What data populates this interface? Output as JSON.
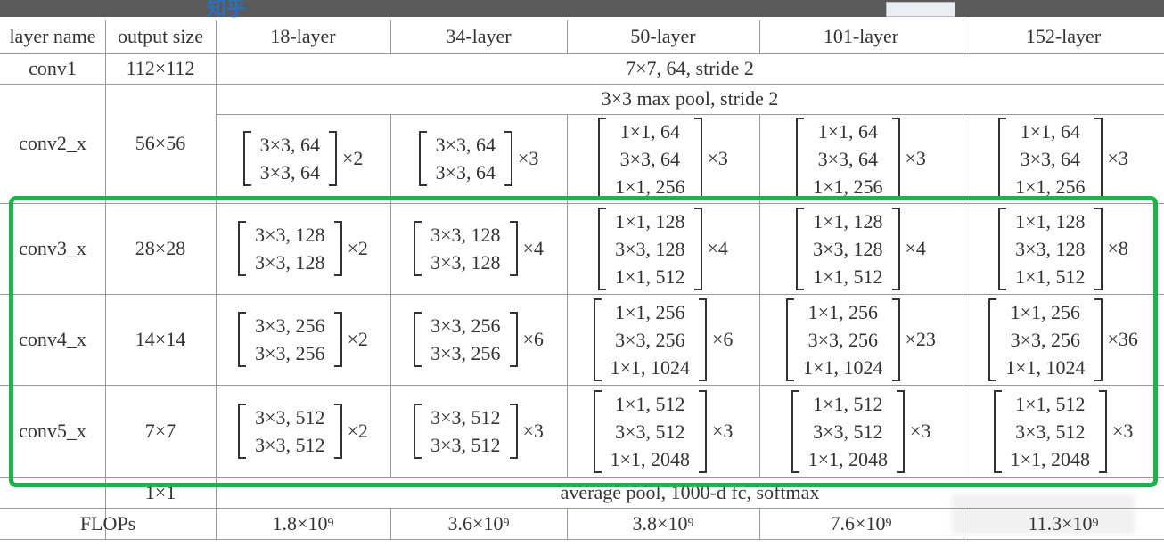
{
  "header": {
    "logo": "知乎"
  },
  "table": {
    "columns": [
      "layer name",
      "output size",
      "18-layer",
      "34-layer",
      "50-layer",
      "101-layer",
      "152-layer"
    ],
    "rows": [
      {
        "name": "conv1",
        "output": "112×112",
        "span": "7×7, 64, stride 2"
      },
      {
        "name": "conv2_x",
        "output": "56×56",
        "span": "3×3 max pool, stride 2",
        "blocks": [
          {
            "lines": [
              "3×3, 64",
              "3×3, 64"
            ],
            "times": "×2"
          },
          {
            "lines": [
              "3×3, 64",
              "3×3, 64"
            ],
            "times": "×3"
          },
          {
            "lines": [
              "1×1, 64",
              "3×3, 64",
              "1×1, 256"
            ],
            "times": "×3"
          },
          {
            "lines": [
              "1×1, 64",
              "3×3, 64",
              "1×1, 256"
            ],
            "times": "×3"
          },
          {
            "lines": [
              "1×1, 64",
              "3×3, 64",
              "1×1, 256"
            ],
            "times": "×3"
          }
        ]
      },
      {
        "name": "conv3_x",
        "output": "28×28",
        "blocks": [
          {
            "lines": [
              "3×3, 128",
              "3×3, 128"
            ],
            "times": "×2"
          },
          {
            "lines": [
              "3×3, 128",
              "3×3, 128"
            ],
            "times": "×4"
          },
          {
            "lines": [
              "1×1, 128",
              "3×3, 128",
              "1×1, 512"
            ],
            "times": "×4"
          },
          {
            "lines": [
              "1×1, 128",
              "3×3, 128",
              "1×1, 512"
            ],
            "times": "×4"
          },
          {
            "lines": [
              "1×1, 128",
              "3×3, 128",
              "1×1, 512"
            ],
            "times": "×8"
          }
        ]
      },
      {
        "name": "conv4_x",
        "output": "14×14",
        "blocks": [
          {
            "lines": [
              "3×3, 256",
              "3×3, 256"
            ],
            "times": "×2"
          },
          {
            "lines": [
              "3×3, 256",
              "3×3, 256"
            ],
            "times": "×6"
          },
          {
            "lines": [
              "1×1, 256",
              "3×3, 256",
              "1×1, 1024"
            ],
            "times": "×6"
          },
          {
            "lines": [
              "1×1, 256",
              "3×3, 256",
              "1×1, 1024"
            ],
            "times": "×23"
          },
          {
            "lines": [
              "1×1, 256",
              "3×3, 256",
              "1×1, 1024"
            ],
            "times": "×36"
          }
        ]
      },
      {
        "name": "conv5_x",
        "output": "7×7",
        "blocks": [
          {
            "lines": [
              "3×3, 512",
              "3×3, 512"
            ],
            "times": "×2"
          },
          {
            "lines": [
              "3×3, 512",
              "3×3, 512"
            ],
            "times": "×3"
          },
          {
            "lines": [
              "1×1, 512",
              "3×3, 512",
              "1×1, 2048"
            ],
            "times": "×3"
          },
          {
            "lines": [
              "1×1, 512",
              "3×3, 512",
              "1×1, 2048"
            ],
            "times": "×3"
          },
          {
            "lines": [
              "1×1, 512",
              "3×3, 512",
              "1×1, 2048"
            ],
            "times": "×3"
          }
        ]
      },
      {
        "name": "",
        "output": "1×1",
        "span": "average pool, 1000-d fc, softmax"
      }
    ],
    "flops": {
      "label": "FLOPs",
      "values": [
        {
          "base": "1.8×10",
          "exp": "9"
        },
        {
          "base": "3.6×10",
          "exp": "9"
        },
        {
          "base": "3.8×10",
          "exp": "9"
        },
        {
          "base": "7.6×10",
          "exp": "9"
        },
        {
          "base": "11.3×10",
          "exp": "9"
        }
      ]
    }
  }
}
